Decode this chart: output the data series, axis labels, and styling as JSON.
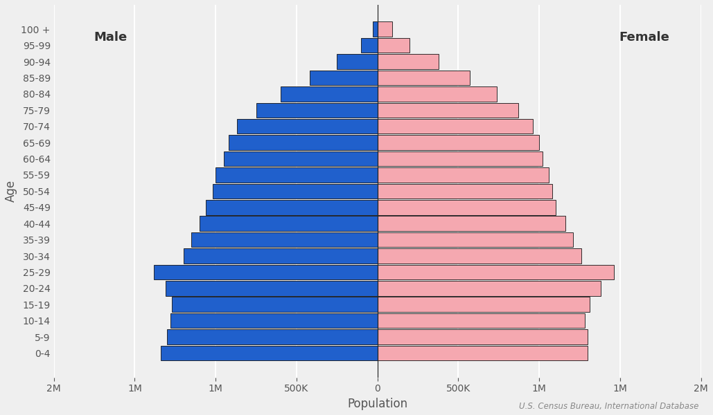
{
  "age_groups": [
    "0-4",
    "5-9",
    "10-14",
    "15-19",
    "20-24",
    "25-29",
    "30-34",
    "35-39",
    "40-44",
    "45-49",
    "50-54",
    "55-59",
    "60-64",
    "65-69",
    "70-74",
    "75-79",
    "80-84",
    "85-89",
    "90-94",
    "95-99",
    "100 +"
  ],
  "male": [
    1340000,
    1300000,
    1280000,
    1270000,
    1310000,
    1380000,
    1200000,
    1150000,
    1100000,
    1060000,
    1020000,
    1000000,
    950000,
    920000,
    870000,
    750000,
    600000,
    420000,
    250000,
    100000,
    30000
  ],
  "female": [
    1300000,
    1300000,
    1280000,
    1310000,
    1380000,
    1460000,
    1260000,
    1210000,
    1160000,
    1100000,
    1080000,
    1060000,
    1020000,
    1000000,
    960000,
    870000,
    740000,
    570000,
    380000,
    200000,
    90000
  ],
  "male_color": "#2060cc",
  "female_color": "#f5a8b0",
  "edge_color": "#111111",
  "bar_height": 0.92,
  "xlim": 2000000,
  "xlabel": "Population",
  "ylabel": "Age",
  "male_label": "Male",
  "female_label": "Female",
  "source_text": "U.S. Census Bureau, International Database",
  "background_color": "#efefef",
  "grid_color": "#ffffff",
  "label_fontsize": 12,
  "tick_fontsize": 10,
  "source_fontsize": 8.5
}
